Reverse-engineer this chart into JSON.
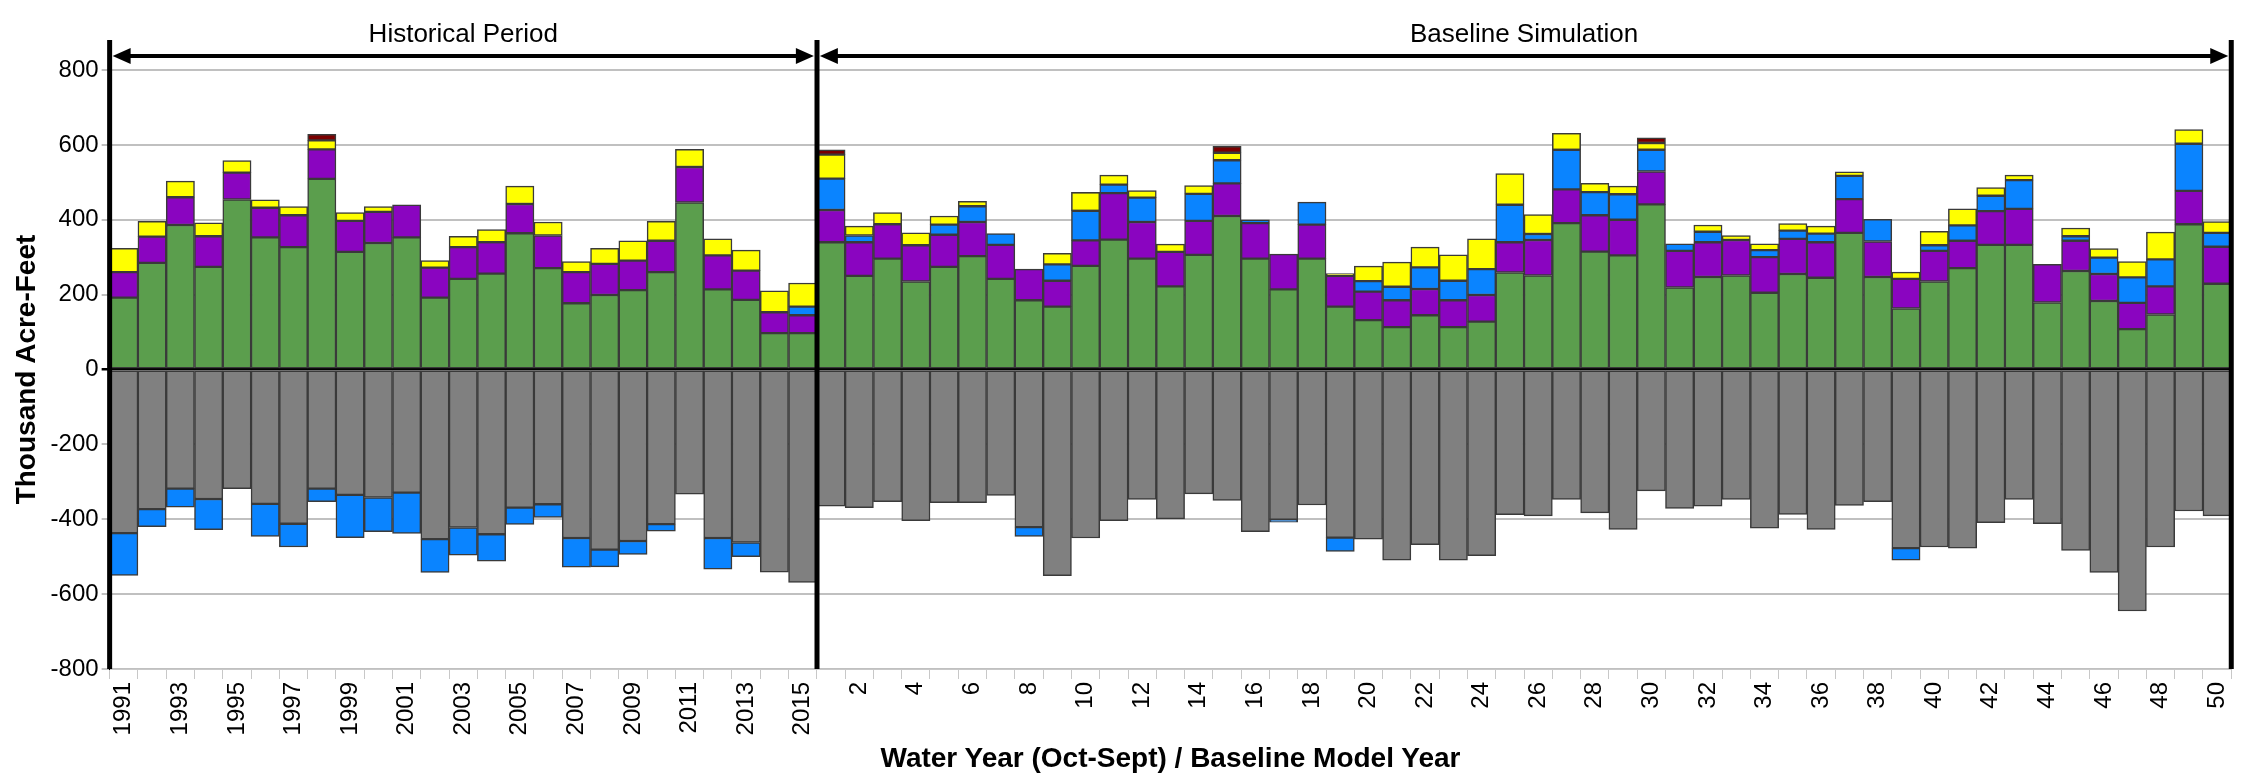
{
  "chart_data": {
    "type": "bar",
    "stacked": true,
    "xlabel": "Water Year (Oct-Sept) / Baseline Model Year",
    "ylabel": "Thousand Acre-Feet",
    "annotations": [
      "Historical Period",
      "Baseline Simulation"
    ],
    "categories": [
      "1991",
      null,
      "1993",
      null,
      "1995",
      null,
      "1997",
      null,
      "1999",
      null,
      "2001",
      null,
      "2003",
      null,
      "2005",
      null,
      "2007",
      null,
      "2009",
      null,
      "2011",
      null,
      "2013",
      null,
      "2015",
      null,
      "2",
      null,
      "4",
      null,
      "6",
      null,
      "8",
      null,
      "10",
      null,
      "12",
      null,
      "14",
      null,
      "16",
      null,
      "18",
      null,
      "20",
      null,
      "22",
      null,
      "24",
      null,
      "26",
      null,
      "28",
      null,
      "30",
      null,
      "32",
      null,
      "34",
      null,
      "36",
      null,
      "38",
      null,
      "40",
      null,
      "42",
      null,
      "44",
      null,
      "46",
      null,
      "48",
      null,
      "50"
    ],
    "ylim": [
      -800,
      800
    ],
    "yticks": [
      -800,
      -600,
      -400,
      -200,
      0,
      200,
      400,
      600,
      800
    ],
    "grid": "y",
    "series": [
      {
        "color": "#5b9e4d",
        "values": [
          192,
          285,
          386,
          274,
          454,
          353,
          327,
          509,
          314,
          338,
          353,
          192,
          242,
          256,
          364,
          271,
          177,
          199,
          212,
          260,
          446,
          214,
          186,
          97,
          97,
          340,
          250,
          296,
          235,
          274,
          303,
          242,
          185,
          168,
          277,
          347,
          296,
          222,
          306,
          410,
          296,
          214,
          296,
          168,
          132,
          113,
          145,
          113,
          128,
          259,
          251,
          391,
          315,
          305,
          441,
          219,
          247,
          251,
          205,
          255,
          245,
          365,
          247,
          163,
          235,
          271,
          333,
          333,
          179,
          263,
          183,
          108,
          147,
          388,
          229
        ]
      },
      {
        "color": "#8a05c0",
        "values": [
          68,
          70,
          74,
          82,
          72,
          79,
          85,
          79,
          83,
          83,
          87,
          80,
          85,
          84,
          78,
          87,
          83,
          83,
          79,
          84,
          95,
          91,
          78,
          56,
          48,
          86,
          90,
          92,
          97,
          86,
          91,
          91,
          83,
          69,
          68,
          124,
          98,
          92,
          91,
          87,
          95,
          94,
          91,
          82,
          76,
          72,
          70,
          72,
          71,
          81,
          95,
          90,
          97,
          95,
          88,
          98,
          93,
          95,
          95,
          94,
          95,
          90,
          95,
          79,
          82,
          73,
          90,
          96,
          102,
          81,
          72,
          70,
          75,
          89,
          99
        ]
      },
      {
        "color": "#0a84ff",
        "values": [
          null,
          null,
          null,
          null,
          null,
          null,
          null,
          null,
          null,
          null,
          null,
          null,
          null,
          null,
          null,
          null,
          null,
          null,
          null,
          null,
          null,
          null,
          null,
          null,
          23,
          84,
          18,
          null,
          null,
          27,
          42,
          30,
          null,
          44,
          79,
          23,
          65,
          null,
          72,
          62,
          9,
          null,
          60,
          null,
          28,
          36,
          58,
          52,
          69,
          100,
          16,
          106,
          62,
          68,
          58,
          19,
          28,
          null,
          19,
          22,
          23,
          62,
          59,
          null,
          15,
          41,
          41,
          77,
          null,
          12,
          44,
          68,
          72,
          126,
          37
        ]
      },
      {
        "color": "#ffff00",
        "values": [
          64,
          41,
          43,
          36,
          32,
          21,
          23,
          24,
          22,
          14,
          null,
          19,
          29,
          34,
          48,
          36,
          28,
          42,
          53,
          52,
          47,
          44,
          55,
          57,
          63,
          64,
          25,
          31,
          33,
          23,
          13,
          null,
          null,
          29,
          49,
          25,
          19,
          21,
          22,
          20,
          null,
          null,
          null,
          6,
          40,
          66,
          54,
          69,
          81,
          83,
          52,
          44,
          23,
          22,
          18,
          null,
          18,
          12,
          17,
          19,
          20,
          11,
          null,
          18,
          37,
          44,
          22,
          13,
          null,
          22,
          24,
          42,
          73,
          38,
          30
        ]
      },
      {
        "color": "#7a0000",
        "values": [
          null,
          null,
          null,
          null,
          null,
          null,
          null,
          16,
          null,
          null,
          null,
          null,
          null,
          null,
          null,
          null,
          null,
          null,
          null,
          null,
          null,
          null,
          null,
          null,
          null,
          13,
          null,
          null,
          null,
          null,
          null,
          null,
          null,
          null,
          null,
          null,
          null,
          null,
          null,
          17,
          null,
          null,
          null,
          null,
          null,
          null,
          null,
          null,
          null,
          null,
          null,
          null,
          null,
          null,
          14,
          null,
          null,
          null,
          null,
          null,
          null,
          null,
          null,
          null,
          null,
          null,
          null,
          null,
          null,
          null,
          null,
          null,
          null,
          null,
          null
        ]
      },
      {
        "color": "#808080",
        "values": [
          -437,
          -373,
          -318,
          -346,
          -318,
          -359,
          -412,
          -318,
          -335,
          -342,
          -329,
          -453,
          -422,
          -440,
          -369,
          -360,
          -450,
          -481,
          -458,
          -413,
          -333,
          -450,
          -462,
          -541,
          -569,
          -365,
          -369,
          -353,
          -404,
          -356,
          -356,
          -336,
          -421,
          -551,
          -450,
          -404,
          -347,
          -399,
          -332,
          -350,
          -433,
          -401,
          -362,
          -449,
          -453,
          -509,
          -468,
          -509,
          -497,
          -388,
          -391,
          -347,
          -383,
          -427,
          -324,
          -371,
          -365,
          -347,
          -424,
          -387,
          -427,
          -363,
          -353,
          -477,
          -474,
          -477,
          -409,
          -347,
          -412,
          -483,
          -542,
          -645,
          -474,
          -378,
          -391
        ]
      },
      {
        "color": "#0a84ff",
        "values": [
          -113,
          -47,
          -50,
          -82,
          null,
          -87,
          -62,
          -35,
          -114,
          -91,
          -109,
          -89,
          -74,
          -72,
          -45,
          -35,
          -78,
          -46,
          -36,
          -19,
          null,
          -83,
          -38,
          null,
          null,
          null,
          null,
          null,
          null,
          null,
          null,
          null,
          -25,
          null,
          null,
          null,
          null,
          null,
          null,
          null,
          null,
          -7,
          null,
          -37,
          null,
          null,
          null,
          null,
          null,
          null,
          null,
          null,
          null,
          null,
          null,
          null,
          null,
          null,
          null,
          null,
          null,
          null,
          null,
          -32,
          null,
          null,
          null,
          null,
          null,
          null,
          null,
          null,
          null,
          null,
          null
        ]
      }
    ]
  }
}
